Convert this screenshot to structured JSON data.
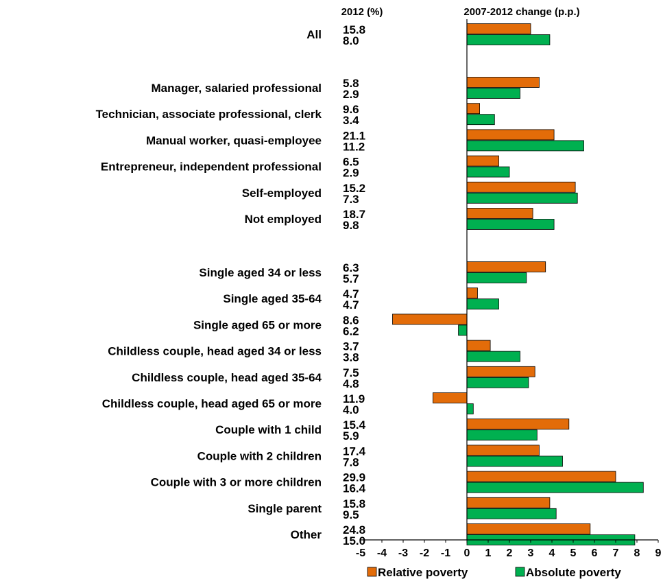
{
  "chart_data": {
    "type": "bar",
    "orientation": "horizontal",
    "headers": {
      "values_column": "2012 (%)",
      "change_column": "2007-2012 change (p.p.)"
    },
    "groups": [
      [
        "All"
      ],
      [
        "Manager, salaried professional",
        "Technician, associate professional, clerk",
        "Manual worker, quasi-employee",
        "Entrepreneur, independent professional",
        "Self-employed",
        "Not employed"
      ],
      [
        "Single aged 34 or less",
        "Single aged 35-64",
        "Single aged 65 or more",
        "Childless couple, head aged 34 or less",
        "Childless couple, head aged 35-64",
        "Childless couple, head aged 65 or more",
        "Couple with 1 child",
        "Couple with 2 children",
        "Couple with 3 or more children",
        "Single parent",
        "Other"
      ]
    ],
    "categories": [
      "All",
      "Manager, salaried professional",
      "Technician, associate professional, clerk",
      "Manual worker, quasi-employee",
      "Entrepreneur, independent professional",
      "Self-employed",
      "Not employed",
      "Single aged 34 or less",
      "Single aged 35-64",
      "Single aged 65 or more",
      "Childless couple, head aged 34 or less",
      "Childless couple, head aged 35-64",
      "Childless couple, head aged 65 or more",
      "Couple with 1 child",
      "Couple with 2 children",
      "Couple with 3 or more children",
      "Single parent",
      "Other"
    ],
    "series": [
      {
        "name": "Relative poverty",
        "color": "#E36C09",
        "level_2012": [
          "15.8",
          "5.8",
          "9.6",
          "21.1",
          "6.5",
          "15.2",
          "18.7",
          "6.3",
          "4.7",
          "8.6",
          "3.7",
          "7.5",
          "11.9",
          "15.4",
          "17.4",
          "29.9",
          "15.8",
          "24.8"
        ],
        "change": [
          3.0,
          3.4,
          0.6,
          4.1,
          1.5,
          5.1,
          3.1,
          3.7,
          0.5,
          -3.5,
          1.1,
          3.2,
          -1.6,
          4.8,
          3.4,
          7.0,
          3.9,
          5.8
        ]
      },
      {
        "name": "Absolute poverty",
        "color": "#00B050",
        "level_2012": [
          "8.0",
          "2.9",
          "3.4",
          "11.2",
          "2.9",
          "7.3",
          "9.8",
          "5.7",
          "4.7",
          "6.2",
          "3.8",
          "4.8",
          "4.0",
          "5.9",
          "7.8",
          "16.4",
          "9.5",
          "15.0"
        ],
        "change": [
          3.9,
          2.5,
          1.3,
          5.5,
          2.0,
          5.2,
          4.1,
          2.8,
          1.5,
          -0.4,
          2.5,
          2.9,
          0.3,
          3.3,
          4.5,
          8.3,
          4.2,
          7.9
        ]
      }
    ],
    "xlim": [
      -5,
      9
    ],
    "x_ticks": [
      "-5",
      "-4",
      "-3",
      "-2",
      "-1",
      "0",
      "1",
      "2",
      "3",
      "4",
      "5",
      "6",
      "7",
      "8",
      "9"
    ],
    "grid": false,
    "legend_position": "bottom"
  }
}
